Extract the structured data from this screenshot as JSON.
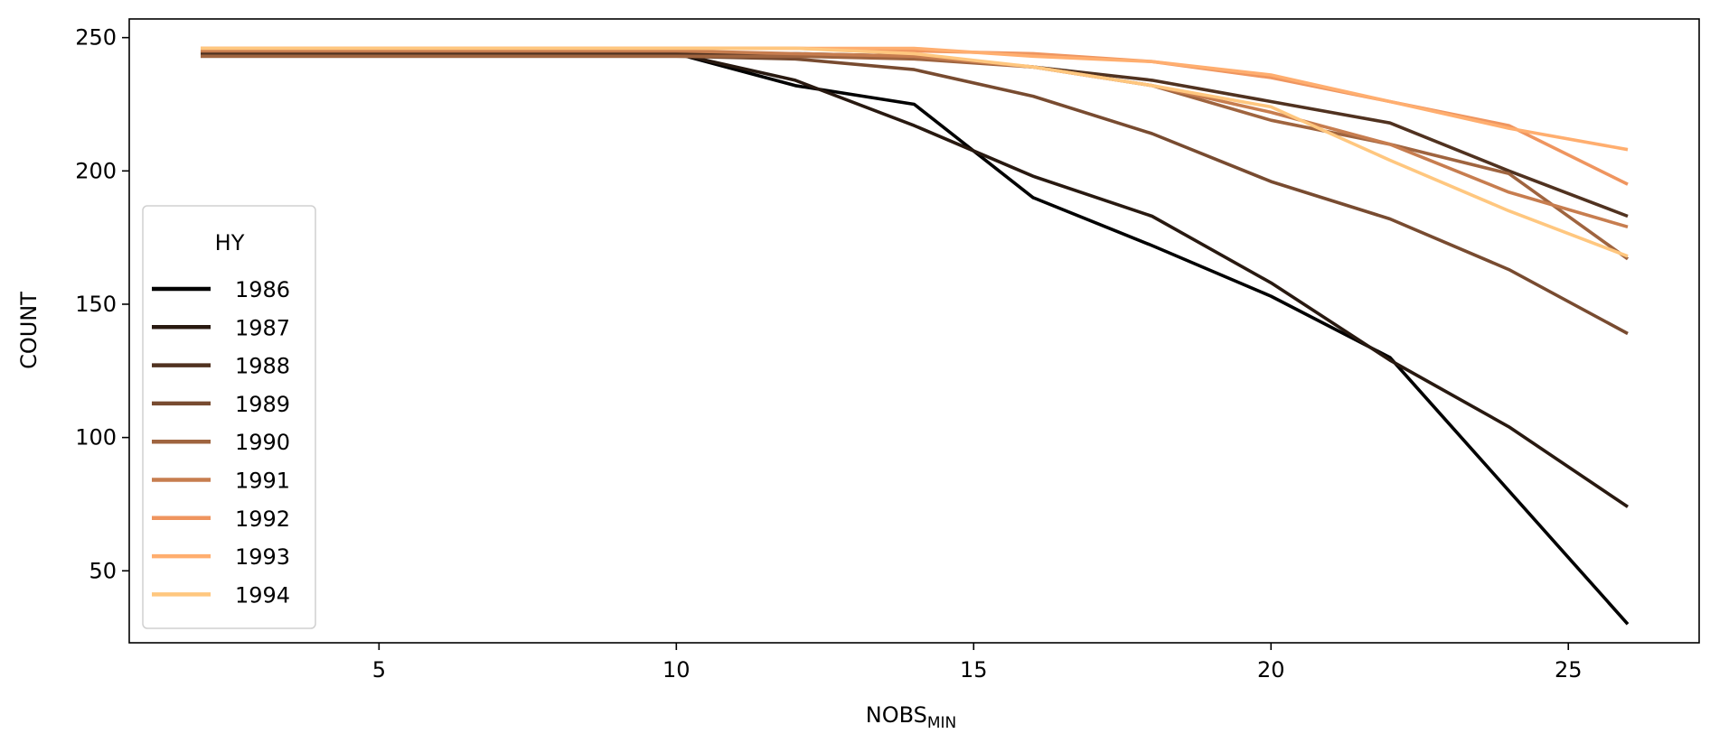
{
  "chart_data": {
    "type": "line",
    "xlabel": "NOBS",
    "xlabel_sub": "MIN",
    "ylabel": "COUNT",
    "xlim": [
      0.8,
      27.2
    ],
    "ylim": [
      23,
      257
    ],
    "xticks": [
      5,
      10,
      15,
      20,
      25
    ],
    "yticks": [
      50,
      100,
      150,
      200,
      250
    ],
    "grid": false,
    "legend": {
      "title": "HY",
      "placement": "center-left"
    },
    "x": [
      2,
      4,
      6,
      8,
      10,
      12,
      14,
      16,
      18,
      20,
      22,
      24,
      26
    ],
    "series": [
      {
        "name": "1986",
        "color": "#000000",
        "values": [
          244,
          244,
          244,
          244,
          244,
          232,
          225,
          190,
          172,
          153,
          130,
          80,
          30
        ]
      },
      {
        "name": "1987",
        "color": "#281910",
        "values": [
          244,
          244,
          244,
          244,
          244,
          234,
          217,
          198,
          183,
          158,
          129,
          104,
          74
        ]
      },
      {
        "name": "1988",
        "color": "#503220",
        "values": [
          244,
          244,
          244,
          244,
          244,
          244,
          243,
          239,
          234,
          226,
          218,
          200,
          183
        ]
      },
      {
        "name": "1989",
        "color": "#784b30",
        "values": [
          243,
          243,
          243,
          243,
          243,
          242,
          238,
          228,
          214,
          196,
          182,
          163,
          139
        ]
      },
      {
        "name": "1990",
        "color": "#9f643f",
        "values": [
          243,
          243,
          243,
          243,
          243,
          243,
          242,
          239,
          232,
          219,
          210,
          199,
          167
        ]
      },
      {
        "name": "1991",
        "color": "#c77d4f",
        "values": [
          245,
          245,
          245,
          245,
          245,
          244,
          243,
          239,
          232,
          222,
          210,
          192,
          179
        ]
      },
      {
        "name": "1992",
        "color": "#ef955f",
        "values": [
          246,
          246,
          246,
          246,
          246,
          246,
          245,
          244,
          241,
          235,
          226,
          217,
          195
        ]
      },
      {
        "name": "1993",
        "color": "#ffae6f",
        "values": [
          246,
          246,
          246,
          246,
          246,
          246,
          246,
          243,
          241,
          236,
          226,
          216,
          208
        ]
      },
      {
        "name": "1994",
        "color": "#ffc77f",
        "values": [
          246,
          246,
          246,
          246,
          246,
          246,
          244,
          239,
          232,
          224,
          204,
          185,
          168
        ]
      }
    ]
  }
}
